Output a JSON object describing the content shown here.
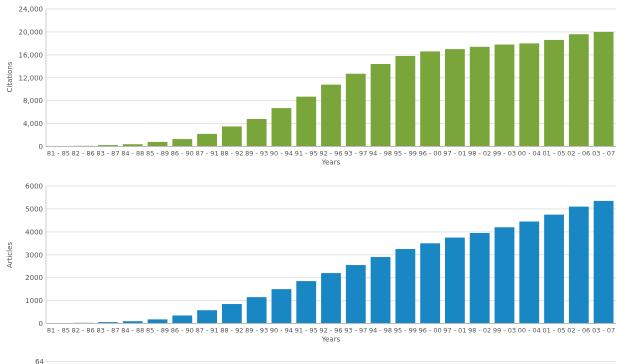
{
  "chart_data": [
    {
      "type": "bar",
      "xlabel": "Years",
      "ylabel": "Citations",
      "ylim": [
        0,
        24000
      ],
      "yticks": [
        "0",
        "4,000",
        "8,000",
        "12,000",
        "16,000",
        "20,000",
        "24,000"
      ],
      "grid": true,
      "color": "#7aa53a",
      "categories": [
        "81 - 85",
        "82 - 86",
        "83 - 87",
        "84 - 88",
        "85 - 89",
        "86 - 90",
        "87 - 91",
        "88 - 92",
        "89 - 93",
        "90 - 94",
        "91 - 95",
        "92 - 96",
        "93 - 97",
        "94 - 98",
        "95 - 99",
        "96 - 00",
        "97 - 01",
        "98 - 02",
        "99 - 03",
        "00 - 04",
        "01 - 05",
        "02 - 06",
        "03 - 07"
      ],
      "values": [
        50,
        120,
        250,
        400,
        800,
        1300,
        2200,
        3500,
        4800,
        6700,
        8700,
        10800,
        12700,
        14400,
        15800,
        16600,
        17000,
        17400,
        17800,
        18000,
        18600,
        19600,
        20000
      ]
    },
    {
      "type": "bar",
      "xlabel": "Years",
      "ylabel": "Articles",
      "ylim": [
        0,
        6000
      ],
      "yticks": [
        "0",
        "1000",
        "2000",
        "3000",
        "4000",
        "5000",
        "6000"
      ],
      "grid": true,
      "color": "#1a87c5",
      "categories": [
        "81 - 85",
        "82 - 86",
        "83 - 87",
        "84 - 88",
        "85 - 89",
        "86 - 90",
        "87 - 91",
        "88 - 92",
        "89 - 93",
        "90 - 94",
        "91 - 95",
        "92 - 96",
        "93 - 97",
        "94 - 98",
        "95 - 99",
        "96 - 00",
        "97 - 01",
        "98 - 02",
        "99 - 03",
        "00 - 04",
        "01 - 05",
        "02 - 06",
        "03 - 07"
      ],
      "values": [
        20,
        30,
        60,
        100,
        180,
        350,
        580,
        850,
        1150,
        1500,
        1850,
        2200,
        2550,
        2900,
        3250,
        3500,
        3750,
        3950,
        4200,
        4450,
        4750,
        5100,
        5350
      ]
    }
  ],
  "third_chart_top_tick": "64"
}
